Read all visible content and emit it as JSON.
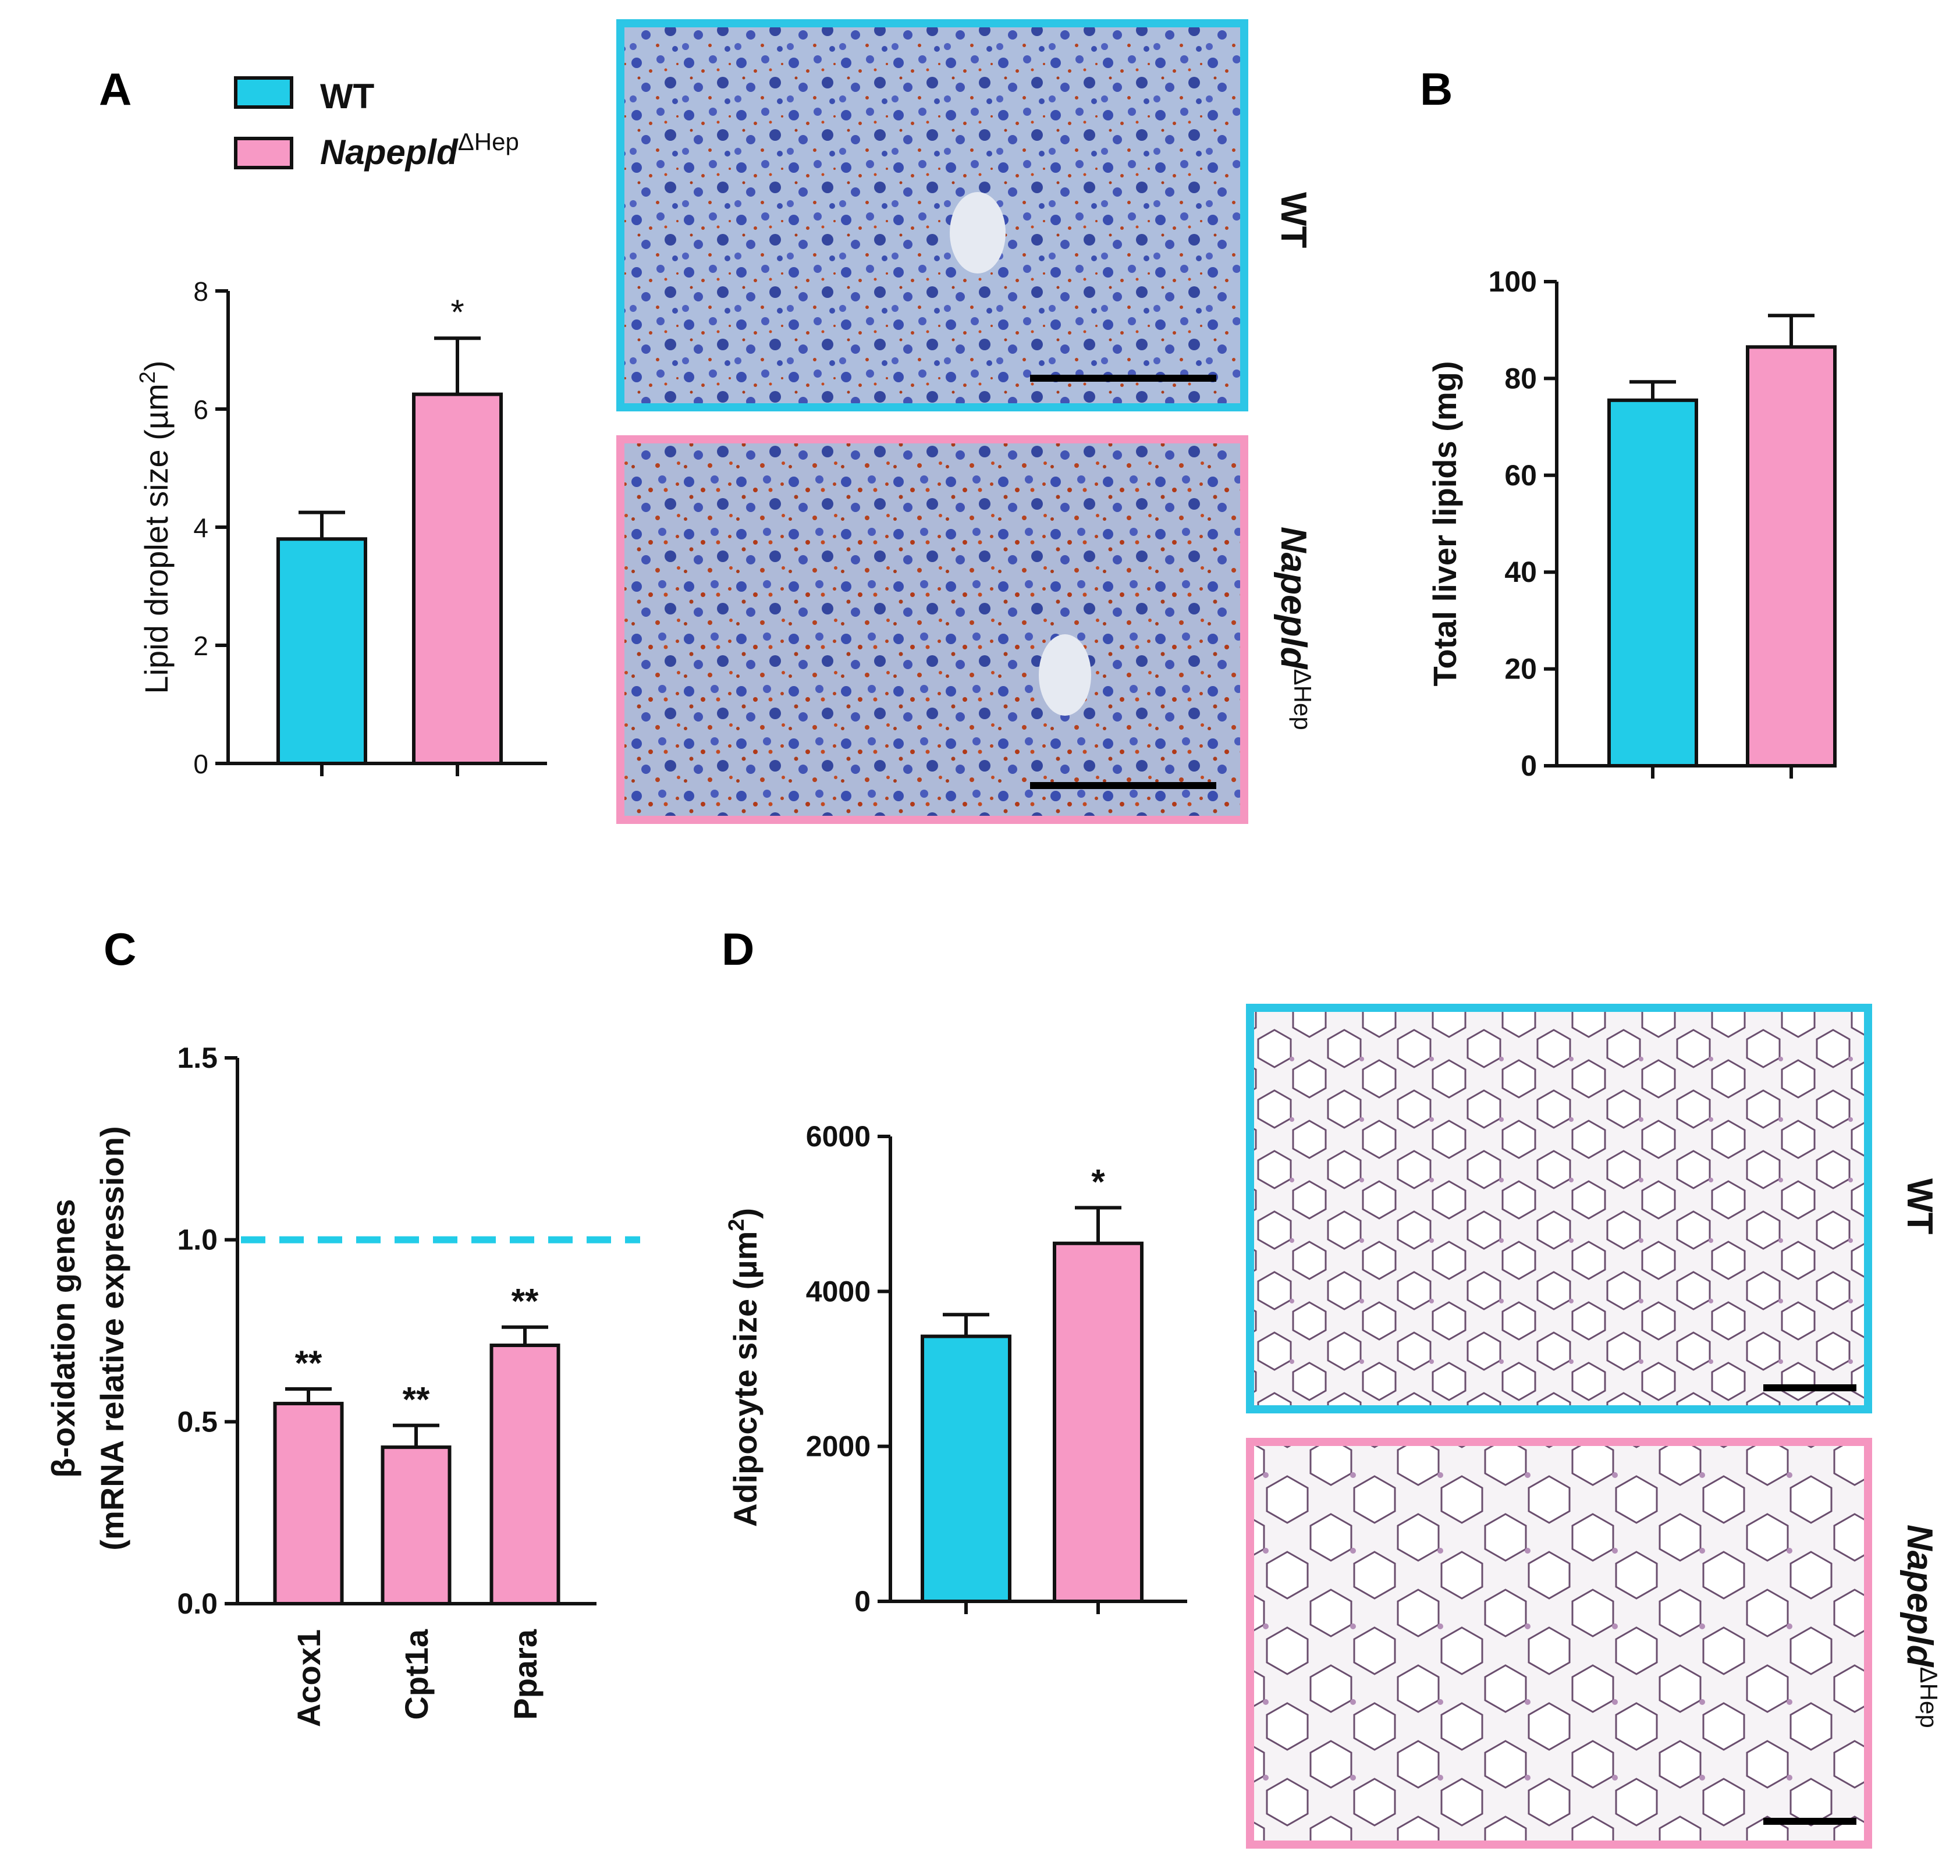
{
  "panel_letters": {
    "a": "A",
    "b": "B",
    "c": "C",
    "d": "D"
  },
  "legend": {
    "wt_label": "WT",
    "ko_label_main": "Napepld",
    "ko_label_sup": "ΔHep"
  },
  "image_labels": {
    "wt": "WT",
    "ko_main": "Napepld",
    "ko_sup": "ΔHep"
  },
  "colors": {
    "wt": "#22CCE8",
    "ko": "#F799C5",
    "wt_frame": "#2CC6E6",
    "ko_frame": "#F596C0"
  },
  "micrographs": {
    "liver_wt": "liver Oil Red O stain, WT",
    "liver_ko": "liver Oil Red O stain, Napepld ΔHep",
    "adipose_wt": "adipose tissue H&E stain, WT",
    "adipose_ko": "adipose tissue H&E stain, Napepld ΔHep"
  },
  "chart_data": [
    {
      "id": "A",
      "type": "bar",
      "ylabel_main": "Lipid droplet size (µm",
      "ylabel_sup": "2",
      "ylabel_end": ")",
      "ylim": [
        0,
        8
      ],
      "yticks": [
        "0",
        "2",
        "4",
        "6",
        "8"
      ],
      "bars": [
        {
          "group": "WT",
          "value": 3.8,
          "err": 0.45,
          "sig": ""
        },
        {
          "group": "Napepld ΔHep",
          "value": 6.25,
          "err": 0.95,
          "sig": "*"
        }
      ]
    },
    {
      "id": "B",
      "type": "bar",
      "ylabel": "Total liver lipids (mg)",
      "ylim": [
        0,
        100
      ],
      "yticks": [
        "0",
        "20",
        "40",
        "60",
        "80",
        "100"
      ],
      "bars": [
        {
          "group": "WT",
          "value": 75.5,
          "err": 3.8,
          "sig": ""
        },
        {
          "group": "Napepld ΔHep",
          "value": 86.5,
          "err": 6.5,
          "sig": ""
        }
      ]
    },
    {
      "id": "C",
      "type": "bar",
      "ylabel_line1": "β-oxidation genes",
      "ylabel_line2": "(mRNA relative expression)",
      "ylim": [
        0,
        1.5
      ],
      "yticks": [
        "0.0",
        "0.5",
        "1.0",
        "1.5"
      ],
      "reference_line": 1.0,
      "categories": [
        "Acox1",
        "Cpt1a",
        "Ppara"
      ],
      "values": [
        0.55,
        0.43,
        0.71
      ],
      "errors": [
        0.04,
        0.06,
        0.05
      ],
      "sig": [
        "**",
        "**",
        "**"
      ]
    },
    {
      "id": "D",
      "type": "bar",
      "ylabel_main": "Adipocyte size (µm",
      "ylabel_sup": "2",
      "ylabel_end": ")",
      "ylim": [
        0,
        6000
      ],
      "yticks": [
        "0",
        "2000",
        "4000",
        "6000"
      ],
      "bars": [
        {
          "group": "WT",
          "value": 3420,
          "err": 280,
          "sig": ""
        },
        {
          "group": "Napepld ΔHep",
          "value": 4620,
          "err": 460,
          "sig": "*"
        }
      ]
    }
  ]
}
